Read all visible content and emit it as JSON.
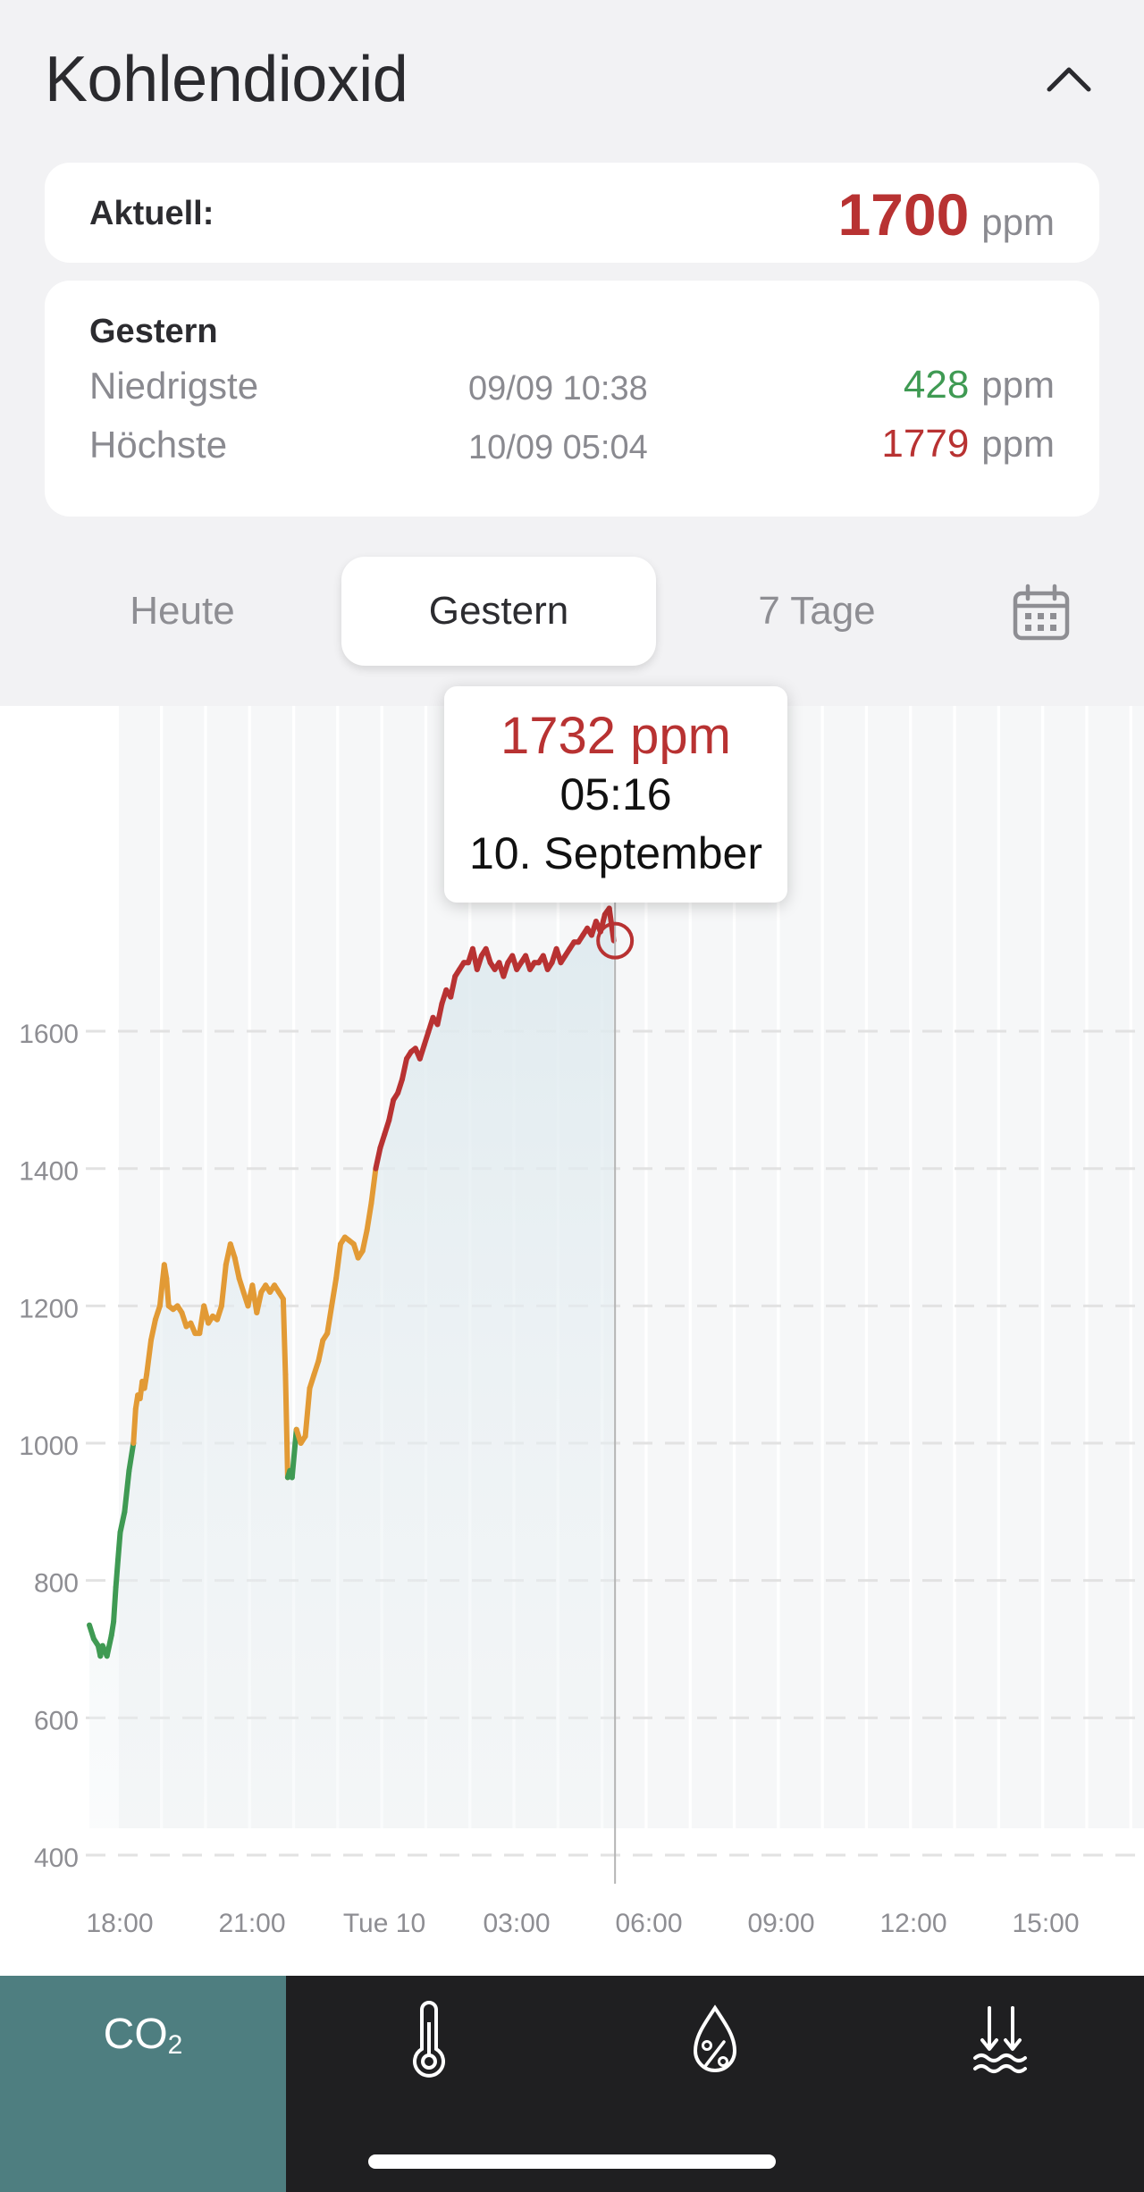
{
  "header": {
    "title": "Kohlendioxid"
  },
  "current": {
    "label": "Aktuell:",
    "value": "1700",
    "unit": "ppm"
  },
  "yesterday_card": {
    "title": "Gestern",
    "lowest": {
      "label": "Niedrigste",
      "time": "09/09 10:38",
      "value": "428",
      "unit": "ppm"
    },
    "highest": {
      "label": "Höchste",
      "time": "10/09 05:04",
      "value": "1779",
      "unit": "ppm"
    }
  },
  "tabs": [
    {
      "label": "Heute",
      "active": false
    },
    {
      "label": "Gestern",
      "active": true
    },
    {
      "label": "7 Tage",
      "active": false
    }
  ],
  "tooltip": {
    "value": "1732 ppm",
    "time": "05:16",
    "date": "10. September"
  },
  "colors": {
    "good": "#3f9a53",
    "moderate": "#e29a35",
    "bad": "#b83232",
    "accent": "#4e7e80"
  },
  "chart_data": {
    "type": "line",
    "x_unit": "hours since 17:20 (09 Sep)",
    "y_ticks": [
      400,
      600,
      800,
      1000,
      1200,
      1400,
      1600
    ],
    "x_tick_labels": [
      "18:00",
      "21:00",
      "Tue 10",
      "03:00",
      "06:00",
      "09:00",
      "12:00",
      "15:00"
    ],
    "ylim": [
      400,
      1760
    ],
    "thresholds": {
      "moderate": 1000,
      "bad": 1400
    },
    "selected_point": {
      "x": 11.93,
      "y": 1732
    },
    "series": [
      {
        "name": "CO2",
        "points": [
          [
            0.0,
            735
          ],
          [
            0.1,
            715
          ],
          [
            0.2,
            705
          ],
          [
            0.25,
            690
          ],
          [
            0.3,
            705
          ],
          [
            0.4,
            690
          ],
          [
            0.5,
            720
          ],
          [
            0.55,
            740
          ],
          [
            0.6,
            790
          ],
          [
            0.65,
            830
          ],
          [
            0.7,
            870
          ],
          [
            0.8,
            900
          ],
          [
            0.9,
            960
          ],
          [
            1.0,
            1000
          ],
          [
            1.05,
            1050
          ],
          [
            1.1,
            1070
          ],
          [
            1.15,
            1065
          ],
          [
            1.2,
            1090
          ],
          [
            1.25,
            1080
          ],
          [
            1.3,
            1100
          ],
          [
            1.4,
            1150
          ],
          [
            1.5,
            1180
          ],
          [
            1.55,
            1190
          ],
          [
            1.6,
            1200
          ],
          [
            1.7,
            1260
          ],
          [
            1.75,
            1240
          ],
          [
            1.8,
            1200
          ],
          [
            1.9,
            1195
          ],
          [
            2.0,
            1200
          ],
          [
            2.1,
            1190
          ],
          [
            2.2,
            1170
          ],
          [
            2.3,
            1175
          ],
          [
            2.4,
            1160
          ],
          [
            2.5,
            1160
          ],
          [
            2.6,
            1200
          ],
          [
            2.7,
            1175
          ],
          [
            2.8,
            1185
          ],
          [
            2.9,
            1180
          ],
          [
            3.0,
            1200
          ],
          [
            3.1,
            1260
          ],
          [
            3.2,
            1290
          ],
          [
            3.3,
            1270
          ],
          [
            3.4,
            1240
          ],
          [
            3.5,
            1220
          ],
          [
            3.6,
            1200
          ],
          [
            3.7,
            1230
          ],
          [
            3.8,
            1190
          ],
          [
            3.9,
            1220
          ],
          [
            4.0,
            1230
          ],
          [
            4.1,
            1220
          ],
          [
            4.2,
            1230
          ],
          [
            4.3,
            1220
          ],
          [
            4.4,
            1210
          ],
          [
            4.45,
            1100
          ],
          [
            4.5,
            950
          ],
          [
            4.55,
            960
          ],
          [
            4.6,
            950
          ],
          [
            4.7,
            1020
          ],
          [
            4.8,
            1000
          ],
          [
            4.9,
            1010
          ],
          [
            5.0,
            1080
          ],
          [
            5.1,
            1100
          ],
          [
            5.2,
            1120
          ],
          [
            5.3,
            1150
          ],
          [
            5.4,
            1160
          ],
          [
            5.5,
            1200
          ],
          [
            5.6,
            1240
          ],
          [
            5.7,
            1290
          ],
          [
            5.8,
            1300
          ],
          [
            5.9,
            1295
          ],
          [
            6.0,
            1290
          ],
          [
            6.1,
            1270
          ],
          [
            6.2,
            1280
          ],
          [
            6.3,
            1310
          ],
          [
            6.4,
            1350
          ],
          [
            6.5,
            1400
          ],
          [
            6.6,
            1430
          ],
          [
            6.7,
            1450
          ],
          [
            6.8,
            1470
          ],
          [
            6.9,
            1500
          ],
          [
            7.0,
            1510
          ],
          [
            7.1,
            1530
          ],
          [
            7.2,
            1560
          ],
          [
            7.3,
            1570
          ],
          [
            7.4,
            1575
          ],
          [
            7.5,
            1560
          ],
          [
            7.6,
            1580
          ],
          [
            7.7,
            1600
          ],
          [
            7.8,
            1620
          ],
          [
            7.9,
            1610
          ],
          [
            8.0,
            1640
          ],
          [
            8.1,
            1660
          ],
          [
            8.2,
            1650
          ],
          [
            8.3,
            1680
          ],
          [
            8.4,
            1690
          ],
          [
            8.5,
            1700
          ],
          [
            8.6,
            1700
          ],
          [
            8.7,
            1720
          ],
          [
            8.8,
            1690
          ],
          [
            8.9,
            1710
          ],
          [
            9.0,
            1720
          ],
          [
            9.1,
            1700
          ],
          [
            9.2,
            1690
          ],
          [
            9.3,
            1700
          ],
          [
            9.4,
            1680
          ],
          [
            9.5,
            1700
          ],
          [
            9.6,
            1710
          ],
          [
            9.7,
            1690
          ],
          [
            9.8,
            1700
          ],
          [
            9.9,
            1710
          ],
          [
            10.0,
            1690
          ],
          [
            10.1,
            1700
          ],
          [
            10.2,
            1700
          ],
          [
            10.3,
            1710
          ],
          [
            10.4,
            1690
          ],
          [
            10.5,
            1700
          ],
          [
            10.6,
            1720
          ],
          [
            10.7,
            1700
          ],
          [
            10.8,
            1710
          ],
          [
            10.9,
            1720
          ],
          [
            11.0,
            1730
          ],
          [
            11.1,
            1730
          ],
          [
            11.2,
            1740
          ],
          [
            11.3,
            1750
          ],
          [
            11.4,
            1740
          ],
          [
            11.5,
            1760
          ],
          [
            11.6,
            1745
          ],
          [
            11.7,
            1770
          ],
          [
            11.8,
            1779
          ],
          [
            11.9,
            1732
          ]
        ]
      }
    ]
  }
}
